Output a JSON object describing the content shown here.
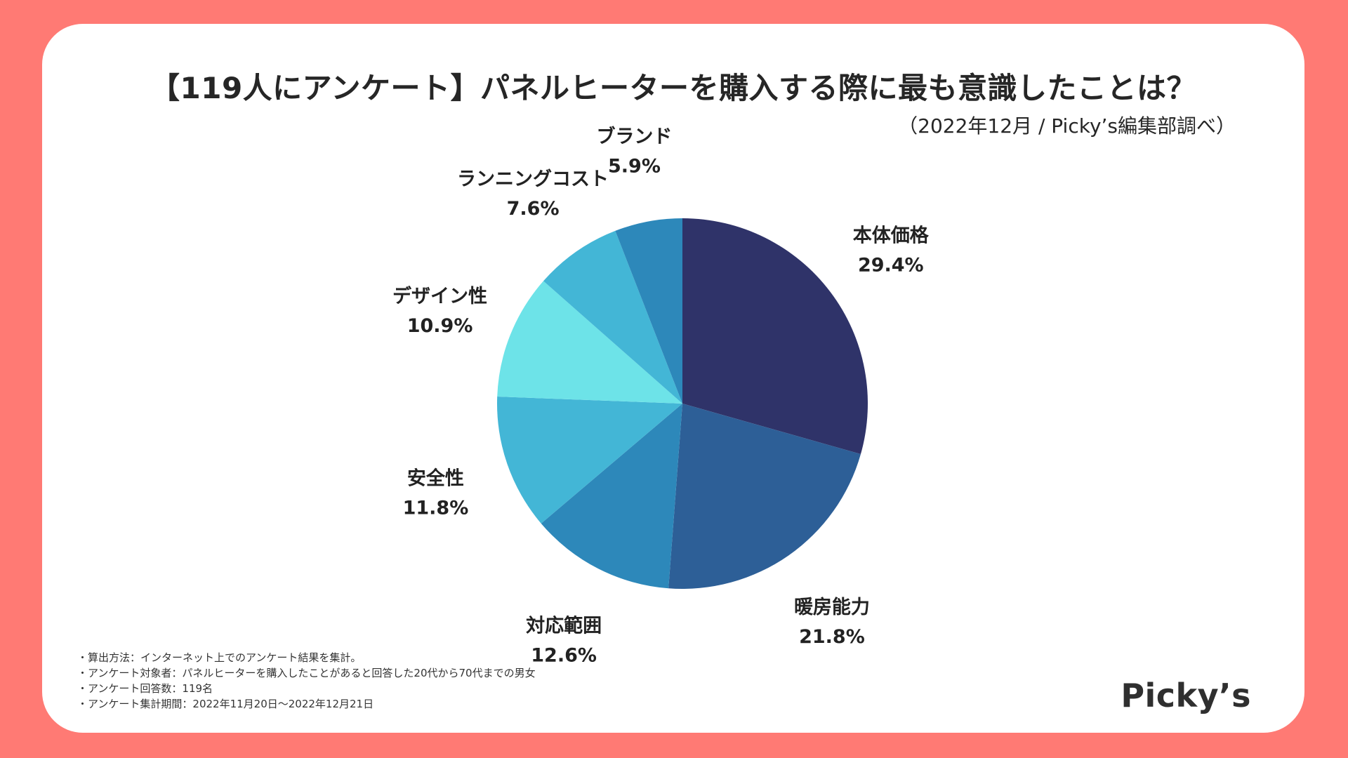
{
  "title": "【119人にアンケート】パネルヒーターを購入する際に最も意識したことは？",
  "subtitle": "（2022年12月 / Picky’s編集部調べ）",
  "chart_data": {
    "type": "pie",
    "start_angle_deg": 0,
    "direction": "clockwise",
    "slices": [
      {
        "label": "本体価格",
        "value": 29.4,
        "value_label": "29.4%",
        "color": "#2F3369"
      },
      {
        "label": "暖房能力",
        "value": 21.8,
        "value_label": "21.8%",
        "color": "#2D5F97"
      },
      {
        "label": "対応範囲",
        "value": 12.6,
        "value_label": "12.6%",
        "color": "#2D88BA"
      },
      {
        "label": "安全性",
        "value": 11.8,
        "value_label": "11.8%",
        "color": "#43B6D6"
      },
      {
        "label": "デザイン性",
        "value": 10.9,
        "value_label": "10.9%",
        "color": "#6DE3E8"
      },
      {
        "label": "ランニングコスト",
        "value": 7.6,
        "value_label": "7.6%",
        "color": "#43B6D6"
      },
      {
        "label": "ブランド",
        "value": 5.9,
        "value_label": "5.9%",
        "color": "#2D88BA"
      }
    ]
  },
  "notes": [
    "・算出方法：インターネット上でのアンケート結果を集計。",
    "・アンケート対象者：パネルヒーターを購入したことがあると回答した20代から70代までの男女",
    "・アンケート回答数：119名",
    "・アンケート集計期間：2022年11月20日〜2022年12月21日"
  ],
  "logo": "Picky’s"
}
